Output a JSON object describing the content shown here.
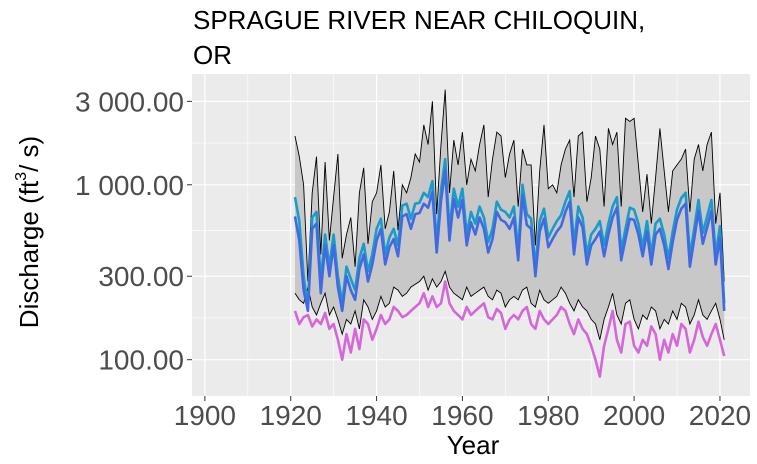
{
  "chart_data": {
    "type": "line",
    "title_lines": [
      "SPRAGUE RIVER NEAR CHILOQUIN,",
      "OR"
    ],
    "xlabel": "Year",
    "ylabel_main": "Discharge (ft",
    "ylabel_sup": "3",
    "ylabel_end": "/ s)",
    "y_scale": "log",
    "xlim": [
      1897,
      2027
    ],
    "ylim": [
      62,
      4300
    ],
    "x_ticks": [
      1900,
      1920,
      1940,
      1960,
      1980,
      2000,
      2020
    ],
    "x_tick_labels": [
      "1900",
      "1920",
      "1940",
      "1960",
      "1980",
      "2000",
      "2020"
    ],
    "y_ticks": [
      100,
      300,
      1000,
      3000
    ],
    "y_tick_labels": [
      "100.00",
      "300.00",
      "1 000.00",
      "3 000.00"
    ],
    "grid": true,
    "colors": {
      "panel": "#ebebeb",
      "grid_major": "#ffffff",
      "band_fill": "#c8c8c8",
      "band_edge": "#000000",
      "teal": "#1a9bc9",
      "blue": "#4169e1",
      "magenta": "#d567d9"
    },
    "years": [
      1921,
      1922,
      1923,
      1924,
      1925,
      1926,
      1927,
      1928,
      1929,
      1930,
      1931,
      1932,
      1933,
      1934,
      1935,
      1936,
      1937,
      1938,
      1939,
      1940,
      1941,
      1942,
      1943,
      1944,
      1945,
      1946,
      1947,
      1948,
      1949,
      1950,
      1951,
      1952,
      1953,
      1954,
      1955,
      1956,
      1957,
      1958,
      1959,
      1960,
      1961,
      1962,
      1963,
      1964,
      1965,
      1966,
      1967,
      1968,
      1969,
      1970,
      1971,
      1972,
      1973,
      1974,
      1975,
      1976,
      1977,
      1978,
      1979,
      1980,
      1981,
      1982,
      1983,
      1984,
      1985,
      1986,
      1987,
      1988,
      1989,
      1990,
      1991,
      1992,
      1993,
      1994,
      1995,
      1996,
      1997,
      1998,
      1999,
      2000,
      2001,
      2002,
      2003,
      2004,
      2005,
      2006,
      2007,
      2008,
      2009,
      2010,
      2011,
      2012,
      2013,
      2014,
      2015,
      2016,
      2017,
      2018,
      2019,
      2020,
      2021
    ],
    "series": [
      {
        "key": "band_upper",
        "values": [
          1900,
          1450,
          1000,
          280,
          900,
          1450,
          400,
          1350,
          480,
          850,
          1500,
          380,
          520,
          650,
          340,
          900,
          1250,
          460,
          800,
          900,
          1300,
          560,
          700,
          1200,
          550,
          1000,
          900,
          1100,
          1500,
          1350,
          2200,
          1700,
          3000,
          680,
          1700,
          3500,
          900,
          1800,
          1300,
          2000,
          1000,
          1400,
          1200,
          1700,
          2200,
          850,
          1400,
          2000,
          1900,
          1100,
          1500,
          1800,
          750,
          1600,
          1300,
          1300,
          450,
          1200,
          2200,
          950,
          1000,
          900,
          1300,
          1600,
          1800,
          850,
          1900,
          2000,
          800,
          1100,
          1900,
          1600,
          750,
          2100,
          1700,
          2000,
          750,
          2400,
          2300,
          2400,
          1300,
          700,
          1150,
          600,
          1100,
          2100,
          1200,
          700,
          1200,
          1300,
          1400,
          1600,
          700,
          1400,
          1700,
          1200,
          1700,
          2000,
          600,
          900,
          280
        ]
      },
      {
        "key": "band_lower",
        "values": [
          240,
          220,
          210,
          260,
          200,
          180,
          210,
          240,
          180,
          200,
          170,
          140,
          170,
          160,
          190,
          150,
          220,
          200,
          170,
          190,
          230,
          200,
          210,
          260,
          250,
          230,
          240,
          260,
          270,
          280,
          300,
          250,
          290,
          260,
          280,
          320,
          260,
          240,
          230,
          220,
          260,
          230,
          240,
          250,
          260,
          230,
          220,
          250,
          240,
          200,
          220,
          230,
          220,
          250,
          260,
          210,
          200,
          250,
          220,
          210,
          220,
          230,
          260,
          240,
          210,
          190,
          220,
          200,
          190,
          170,
          160,
          130,
          170,
          200,
          240,
          180,
          160,
          210,
          220,
          170,
          150,
          180,
          170,
          200,
          190,
          150,
          170,
          160,
          190,
          170,
          210,
          200,
          160,
          180,
          220,
          180,
          170,
          190,
          210,
          170,
          130
        ]
      },
      {
        "key": "teal_line",
        "values": [
          850,
          620,
          300,
          200,
          650,
          700,
          280,
          520,
          340,
          520,
          300,
          210,
          340,
          290,
          250,
          380,
          460,
          320,
          400,
          560,
          640,
          400,
          500,
          560,
          450,
          760,
          780,
          640,
          780,
          790,
          900,
          850,
          1050,
          470,
          930,
          1400,
          550,
          950,
          750,
          950,
          520,
          700,
          600,
          750,
          650,
          470,
          560,
          800,
          720,
          700,
          650,
          750,
          420,
          1000,
          680,
          640,
          340,
          620,
          730,
          500,
          560,
          620,
          670,
          800,
          920,
          460,
          750,
          650,
          400,
          520,
          560,
          620,
          450,
          600,
          750,
          850,
          420,
          560,
          740,
          720,
          600,
          440,
          620,
          400,
          600,
          640,
          520,
          380,
          540,
          720,
          840,
          900,
          390,
          560,
          820,
          530,
          660,
          820,
          400,
          580,
          210
        ]
      },
      {
        "key": "blue_line",
        "values": [
          660,
          480,
          250,
          190,
          560,
          600,
          240,
          450,
          300,
          450,
          260,
          190,
          300,
          250,
          220,
          330,
          400,
          280,
          350,
          480,
          560,
          350,
          440,
          490,
          390,
          660,
          680,
          560,
          680,
          690,
          780,
          740,
          910,
          410,
          810,
          1210,
          480,
          830,
          650,
          820,
          450,
          610,
          520,
          650,
          560,
          410,
          490,
          700,
          630,
          610,
          560,
          650,
          370,
          870,
          590,
          560,
          300,
          540,
          640,
          440,
          490,
          540,
          580,
          700,
          800,
          400,
          650,
          570,
          350,
          450,
          490,
          540,
          390,
          520,
          650,
          740,
          370,
          490,
          640,
          630,
          520,
          390,
          540,
          350,
          520,
          560,
          450,
          330,
          470,
          630,
          730,
          780,
          340,
          490,
          710,
          460,
          570,
          710,
          350,
          500,
          190
        ]
      },
      {
        "key": "magenta_line",
        "values": [
          190,
          160,
          175,
          180,
          155,
          170,
          160,
          185,
          150,
          160,
          130,
          100,
          140,
          110,
          150,
          115,
          170,
          160,
          130,
          150,
          180,
          160,
          170,
          200,
          190,
          175,
          180,
          190,
          200,
          210,
          240,
          200,
          230,
          200,
          210,
          280,
          210,
          190,
          180,
          170,
          200,
          180,
          190,
          200,
          210,
          175,
          170,
          195,
          185,
          150,
          170,
          180,
          170,
          190,
          200,
          160,
          150,
          190,
          170,
          160,
          170,
          180,
          200,
          190,
          160,
          140,
          170,
          150,
          140,
          120,
          100,
          80,
          120,
          150,
          190,
          130,
          110,
          160,
          165,
          120,
          110,
          130,
          120,
          155,
          140,
          100,
          130,
          110,
          140,
          120,
          160,
          150,
          110,
          130,
          165,
          135,
          120,
          140,
          160,
          130,
          105
        ]
      }
    ]
  }
}
